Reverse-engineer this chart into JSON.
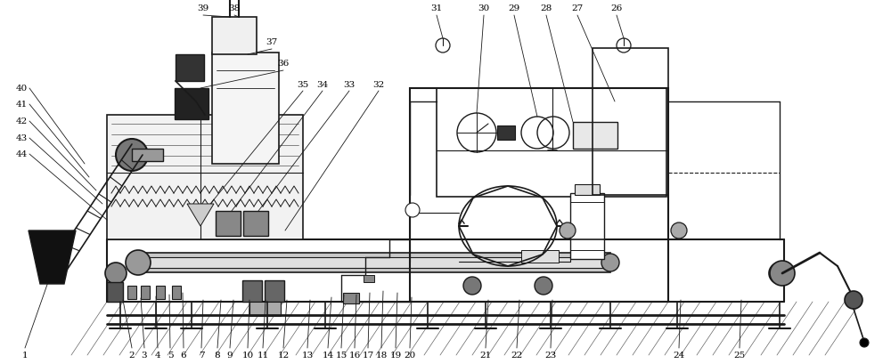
{
  "bg_color": "#ffffff",
  "line_color": "#1a1a1a",
  "fig_width": 10.0,
  "fig_height": 4.1,
  "dpi": 100
}
